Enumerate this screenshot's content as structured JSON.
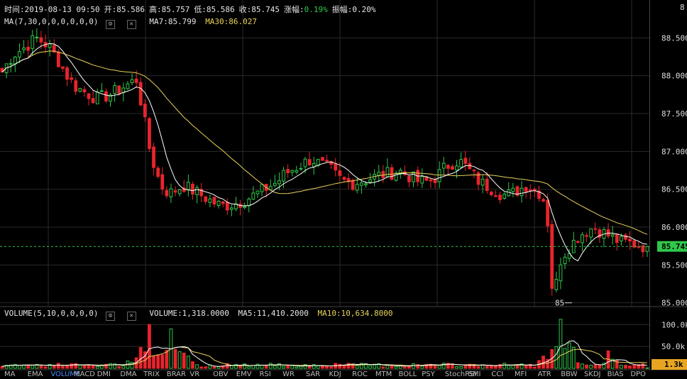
{
  "header": {
    "time_label": "时间:2019-08-13 09:50",
    "open_label": "开:85.586",
    "high_label": "高:85.757",
    "low_label": "低:85.586",
    "close_label": "收:85.745",
    "change_label": "涨幅:",
    "change_value": "0.19%",
    "amplitude_label": "振幅:0.20%"
  },
  "ma_line": {
    "name": "MA(7,30,0,0,0,0,0,0)",
    "ma7": "MA7:85.799",
    "ma30": "MA30:86.027"
  },
  "volume_line": {
    "name": "VOLUME(5,10,0,0,0,0)",
    "volume": "VOLUME:1,318.0000",
    "ma5": "MA5:11,410.2000",
    "ma10": "MA10:10,634.8000"
  },
  "price_axis": {
    "ticks": [
      "88.500",
      "88.000",
      "87.500",
      "87.000",
      "86.500",
      "86.000",
      "85.500",
      "85.000"
    ],
    "top_partial": "8",
    "current_price": "85.745",
    "low_marker": "85"
  },
  "volume_axis": {
    "ticks": [
      "100.0k",
      "50.0k"
    ],
    "current_volume": "1.3k"
  },
  "tabs": [
    "MA",
    "EMA",
    "VOLUME",
    "MACD",
    "DMI",
    "DMA",
    "TRIX",
    "BRAR",
    "VR",
    "OBV",
    "EMV",
    "RSI",
    "WR",
    "SAR",
    "KDJ",
    "ROC",
    "MTM",
    "BOLL",
    "PSY",
    "StochRSI",
    "SMI",
    "CCI",
    "MFI",
    "ATR",
    "BBW",
    "SKDJ",
    "BIAS",
    "DPO"
  ],
  "active_tab": "VOLUME",
  "colors": {
    "up": "#2fc84a",
    "down": "#e8242c",
    "ma7": "#ffffff",
    "ma30": "#e8d35a",
    "current_price_bg": "#2fc84a",
    "current_volume_bg": "#e8a520",
    "grid": "#2a2a2a"
  },
  "chart_data": {
    "type": "candlestick",
    "price_range": [
      84.95,
      89.0
    ],
    "volume_range": [
      0,
      115000
    ],
    "close_path": [
      88.05,
      88.2,
      88.3,
      88.35,
      88.42,
      88.5,
      88.45,
      88.38,
      88.25,
      88.1,
      87.95,
      87.85,
      87.8,
      87.75,
      87.7,
      87.72,
      87.75,
      87.8,
      87.85,
      87.9,
      87.95,
      87.5,
      87.0,
      86.7,
      86.5,
      86.45,
      86.5,
      86.55,
      86.5,
      86.45,
      86.4,
      86.35,
      86.3,
      86.28,
      86.3,
      86.32,
      86.35,
      86.4,
      86.45,
      86.5,
      86.55,
      86.6,
      86.7,
      86.75,
      86.8,
      86.85,
      86.9,
      86.85,
      86.8,
      86.75,
      86.65,
      86.6,
      86.58,
      86.6,
      86.62,
      86.65,
      86.68,
      86.7,
      86.72,
      86.75,
      86.7,
      86.65,
      86.6,
      86.6,
      86.62,
      86.7,
      86.8,
      86.85,
      86.88,
      86.8,
      86.7,
      86.6,
      86.55,
      86.5,
      86.45,
      86.42,
      86.45,
      86.5,
      86.55,
      86.5,
      86.45,
      86.3,
      85.0,
      85.55,
      85.7,
      85.8,
      85.9,
      85.95,
      86.0,
      85.95,
      85.9,
      85.85,
      85.8,
      85.8,
      85.78,
      85.75,
      85.75
    ],
    "volume_peaks": [
      {
        "index": 22,
        "value": 100000
      },
      {
        "index": 25,
        "value": 90000
      },
      {
        "index": 83,
        "value": 112000
      },
      {
        "index": 90,
        "value": 40000
      }
    ],
    "series": [
      {
        "name": "MA7",
        "type": "line"
      },
      {
        "name": "MA30",
        "type": "line"
      },
      {
        "name": "MA5",
        "type": "line"
      },
      {
        "name": "MA10",
        "type": "line"
      }
    ],
    "last": {
      "open": 85.586,
      "high": 85.757,
      "low": 85.586,
      "close": 85.745,
      "volume": 1318
    },
    "grid": true
  }
}
